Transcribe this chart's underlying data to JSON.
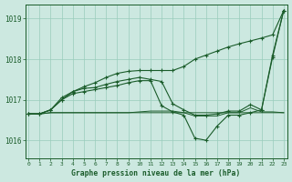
{
  "title": "Graphe pression niveau de la mer (hPa)",
  "background_color": "#cce8e0",
  "grid_color": "#99ccbb",
  "line_color": "#1a5c2a",
  "yticks": [
    1016,
    1017,
    1018,
    1019
  ],
  "ylim": [
    1015.55,
    1019.35
  ],
  "xlim": [
    -0.3,
    23.3
  ],
  "line1": [
    1016.65,
    1016.65,
    1016.68,
    1016.68,
    1016.68,
    1016.68,
    1016.68,
    1016.68,
    1016.68,
    1016.68,
    1016.68,
    1016.68,
    1016.68,
    1016.68,
    1016.68,
    1016.68,
    1016.68,
    1016.68,
    1016.68,
    1016.68,
    1016.68,
    1016.68,
    1016.68,
    1016.68
  ],
  "line2": [
    1016.65,
    1016.65,
    1016.68,
    1016.68,
    1016.68,
    1016.68,
    1016.68,
    1016.68,
    1016.68,
    1016.68,
    1016.7,
    1016.72,
    1016.72,
    1016.72,
    1016.68,
    1016.6,
    1016.6,
    1016.6,
    1016.68,
    1016.68,
    1016.8,
    1016.7,
    1016.7,
    1016.68
  ],
  "line3": [
    1016.65,
    1016.65,
    1016.75,
    1017.0,
    1017.15,
    1017.2,
    1017.25,
    1017.3,
    1017.35,
    1017.42,
    1017.47,
    1017.47,
    1016.85,
    1016.7,
    1016.62,
    1016.05,
    1016.0,
    1016.35,
    1016.62,
    1016.62,
    1016.68,
    1016.75,
    1018.05,
    1019.2
  ],
  "line4": [
    1016.65,
    1016.65,
    1016.75,
    1017.0,
    1017.2,
    1017.28,
    1017.3,
    1017.38,
    1017.45,
    1017.5,
    1017.55,
    1017.5,
    1017.45,
    1016.9,
    1016.75,
    1016.62,
    1016.62,
    1016.65,
    1016.72,
    1016.72,
    1016.88,
    1016.75,
    1018.1,
    1019.2
  ],
  "line5": [
    1016.65,
    1016.65,
    1016.75,
    1017.05,
    1017.2,
    1017.32,
    1017.42,
    1017.55,
    1017.65,
    1017.7,
    1017.72,
    1017.72,
    1017.72,
    1017.72,
    1017.82,
    1018.0,
    1018.1,
    1018.2,
    1018.3,
    1018.38,
    1018.45,
    1018.52,
    1018.6,
    1019.2
  ]
}
